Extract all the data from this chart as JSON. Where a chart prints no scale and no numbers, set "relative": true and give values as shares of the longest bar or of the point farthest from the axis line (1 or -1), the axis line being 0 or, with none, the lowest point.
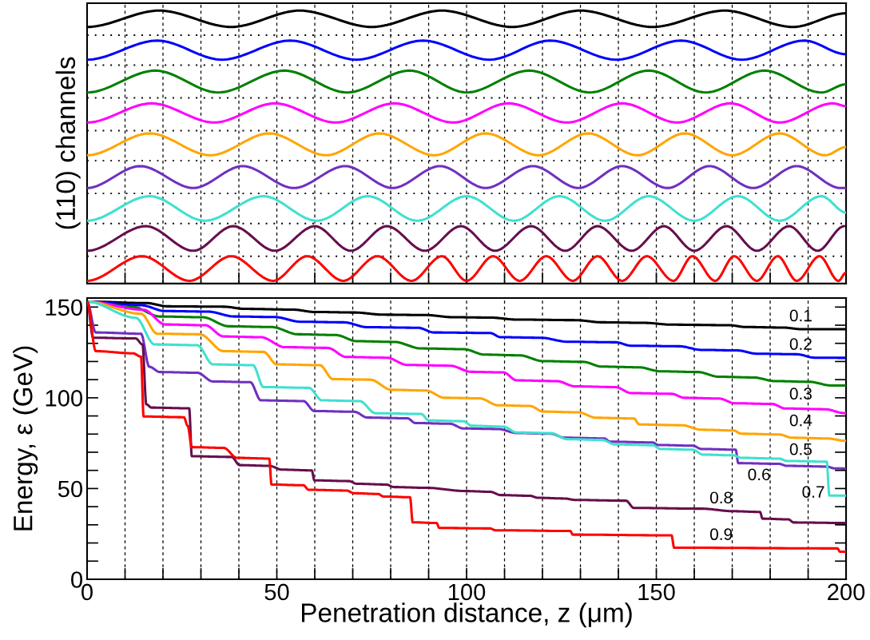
{
  "chart_data": [
    {
      "type": "line",
      "relative": true,
      "ylabel": "(110) channels",
      "xlim": [
        0,
        200
      ],
      "xticks": [
        {
          "value": 0,
          "label": null
        },
        {
          "value": 10,
          "label": null
        },
        {
          "value": 20,
          "label": null
        },
        {
          "value": 30,
          "label": null
        },
        {
          "value": 40,
          "label": null
        },
        {
          "value": 50,
          "label": null
        },
        {
          "value": 60,
          "label": null
        },
        {
          "value": 70,
          "label": null
        },
        {
          "value": 80,
          "label": null
        },
        {
          "value": 90,
          "label": null
        },
        {
          "value": 100,
          "label": null
        },
        {
          "value": 110,
          "label": null
        },
        {
          "value": 120,
          "label": null
        },
        {
          "value": 130,
          "label": null
        },
        {
          "value": 140,
          "label": null
        },
        {
          "value": 150,
          "label": null
        },
        {
          "value": 160,
          "label": null
        },
        {
          "value": 170,
          "label": null
        },
        {
          "value": 180,
          "label": null
        },
        {
          "value": 190,
          "label": null
        },
        {
          "value": 200,
          "label": null
        }
      ],
      "tick_labels": false,
      "grid": "x",
      "line_style": "solid",
      "marker": "none",
      "ref_lines": [
        {
          "axis": "y",
          "value": 0.91,
          "color": "#000000",
          "line_style": "dotted"
        },
        {
          "axis": "y",
          "value": 0.8,
          "color": "#000000",
          "line_style": "dotted"
        },
        {
          "axis": "y",
          "value": 0.68,
          "color": "#000000",
          "line_style": "dotted"
        },
        {
          "axis": "y",
          "value": 0.56,
          "color": "#000000",
          "line_style": "dotted"
        },
        {
          "axis": "y",
          "value": 0.45,
          "color": "#000000",
          "line_style": "dotted"
        },
        {
          "axis": "y",
          "value": 0.33,
          "color": "#000000",
          "line_style": "dotted"
        },
        {
          "axis": "y",
          "value": 0.22,
          "color": "#000000",
          "line_style": "dotted"
        },
        {
          "axis": "y",
          "value": 0.1,
          "color": "#000000",
          "line_style": "dotted"
        }
      ],
      "series": [
        {
          "color": "#000000",
          "x": [
            0,
            19,
            38,
            56,
            75,
            93.5,
            112,
            130,
            149,
            168,
            186,
            200
          ],
          "values": [
            0.94,
            1.0,
            0.94,
            1.0,
            0.94,
            1.0,
            0.94,
            1.0,
            0.94,
            1.0,
            0.94,
            0.99
          ]
        },
        {
          "color": "#0000ff",
          "x": [
            0,
            18.5,
            35.5,
            53.5,
            71,
            88.5,
            106,
            122,
            139.5,
            156.5,
            172.5,
            189,
            200
          ],
          "values": [
            0.82,
            0.89,
            0.82,
            0.89,
            0.82,
            0.89,
            0.82,
            0.89,
            0.82,
            0.89,
            0.82,
            0.89,
            0.84
          ]
        },
        {
          "color": "#008000",
          "x": [
            0,
            18,
            34.5,
            52,
            68.5,
            85,
            100,
            116.5,
            132.5,
            148,
            163,
            178.5,
            193.5,
            200
          ],
          "values": [
            0.7,
            0.78,
            0.7,
            0.78,
            0.7,
            0.78,
            0.7,
            0.78,
            0.7,
            0.78,
            0.7,
            0.78,
            0.7,
            0.73
          ]
        },
        {
          "color": "#ff00ff",
          "x": [
            0,
            17,
            33.5,
            49.5,
            65.5,
            81,
            96.5,
            111,
            126.5,
            141,
            155.5,
            169.5,
            182.5,
            196.5,
            200
          ],
          "values": [
            0.59,
            0.66,
            0.59,
            0.66,
            0.59,
            0.66,
            0.59,
            0.66,
            0.59,
            0.66,
            0.59,
            0.66,
            0.59,
            0.66,
            0.65
          ]
        },
        {
          "color": "#ffa500",
          "x": [
            0,
            16.5,
            32.5,
            48,
            63,
            77,
            91.5,
            105,
            119,
            132,
            145,
            157.5,
            170,
            182.5,
            194.5,
            200
          ],
          "values": [
            0.47,
            0.55,
            0.47,
            0.55,
            0.47,
            0.55,
            0.47,
            0.55,
            0.47,
            0.55,
            0.47,
            0.55,
            0.47,
            0.55,
            0.47,
            0.5
          ]
        },
        {
          "color": "#7030c0",
          "x": [
            0,
            14,
            28,
            41,
            54.5,
            68,
            80.5,
            93,
            105,
            117.5,
            129.5,
            141,
            153,
            164,
            175.5,
            187,
            198.5,
            200
          ],
          "values": [
            0.35,
            0.43,
            0.35,
            0.43,
            0.35,
            0.43,
            0.35,
            0.43,
            0.35,
            0.43,
            0.35,
            0.43,
            0.35,
            0.43,
            0.35,
            0.43,
            0.35,
            0.35
          ]
        },
        {
          "color": "#40e0d0",
          "x": [
            0,
            16.5,
            31,
            46.5,
            60.5,
            74,
            87,
            100,
            112.5,
            124.5,
            136.5,
            148,
            160,
            171.5,
            182.5,
            193.5,
            200
          ],
          "values": [
            0.23,
            0.32,
            0.23,
            0.32,
            0.23,
            0.32,
            0.23,
            0.32,
            0.23,
            0.32,
            0.23,
            0.32,
            0.23,
            0.32,
            0.23,
            0.32,
            0.26
          ]
        },
        {
          "color": "#660e4d",
          "x": [
            0,
            15.5,
            28,
            38.5,
            49.5,
            60,
            69.5,
            79,
            89,
            98.5,
            107.5,
            117,
            126,
            134.5,
            143.5,
            152,
            160,
            168.5,
            176.5,
            185,
            192.5,
            199.5
          ],
          "values": [
            0.12,
            0.21,
            0.12,
            0.21,
            0.12,
            0.21,
            0.12,
            0.21,
            0.12,
            0.21,
            0.12,
            0.21,
            0.12,
            0.21,
            0.12,
            0.21,
            0.12,
            0.21,
            0.12,
            0.21,
            0.12,
            0.21
          ]
        },
        {
          "color": "#ff0000",
          "x": [
            0,
            14.5,
            27,
            38,
            49,
            58,
            67.5,
            76.5,
            85.5,
            93.5,
            100,
            107,
            114,
            121,
            128,
            134.5,
            141,
            147.5,
            154.5,
            159.5,
            165.5,
            170.5,
            176.5,
            182,
            187,
            193,
            198,
            200
          ],
          "values": [
            0.01,
            0.1,
            0.01,
            0.1,
            0.01,
            0.1,
            0.01,
            0.1,
            0.01,
            0.1,
            0.01,
            0.1,
            0.01,
            0.1,
            0.01,
            0.1,
            0.01,
            0.1,
            0.01,
            0.1,
            0.01,
            0.1,
            0.01,
            0.1,
            0.01,
            0.1,
            0.01,
            0.04
          ]
        }
      ]
    },
    {
      "type": "line",
      "xlabel": "Penetration distance, z (μm)",
      "ylabel": "Energy, ε (GeV)",
      "xlim": [
        0,
        200
      ],
      "ylim": [
        0,
        155
      ],
      "xticks": [
        0,
        {
          "value": 10,
          "label": null
        },
        {
          "value": 20,
          "label": null
        },
        {
          "value": 30,
          "label": null
        },
        {
          "value": 40,
          "label": null
        },
        50,
        {
          "value": 60,
          "label": null
        },
        {
          "value": 70,
          "label": null
        },
        {
          "value": 80,
          "label": null
        },
        {
          "value": 90,
          "label": null
        },
        100,
        {
          "value": 110,
          "label": null
        },
        {
          "value": 120,
          "label": null
        },
        {
          "value": 130,
          "label": null
        },
        {
          "value": 140,
          "label": null
        },
        150,
        {
          "value": 160,
          "label": null
        },
        {
          "value": 170,
          "label": null
        },
        {
          "value": 180,
          "label": null
        },
        {
          "value": 190,
          "label": null
        },
        200
      ],
      "yticks": [
        0,
        {
          "value": 10,
          "label": null
        },
        {
          "value": 20,
          "label": null
        },
        {
          "value": 30,
          "label": null
        },
        {
          "value": 40,
          "label": null
        },
        50,
        {
          "value": 60,
          "label": null
        },
        {
          "value": 70,
          "label": null
        },
        {
          "value": 80,
          "label": null
        },
        {
          "value": 90,
          "label": null
        },
        100,
        {
          "value": 110,
          "label": null
        },
        {
          "value": 120,
          "label": null
        },
        {
          "value": 130,
          "label": null
        },
        {
          "value": 140,
          "label": null
        },
        150
      ],
      "grid": "x",
      "line_style": "solid",
      "marker": "none",
      "annotations": [
        {
          "text": "0.1",
          "x": 192,
          "y": 137.8
        },
        {
          "text": "0.2",
          "x": 192,
          "y": 122.1
        },
        {
          "text": "0.3",
          "x": 192,
          "y": 108.2
        },
        {
          "text": "0.4",
          "x": 192,
          "y": 93.5
        },
        {
          "text": "0.5",
          "x": 192,
          "y": 77.6
        },
        {
          "text": "0.6",
          "x": 181,
          "y": 63.7
        },
        {
          "text": "0.7",
          "x": 195.3,
          "y": 54.1
        },
        {
          "text": "0.8",
          "x": 171,
          "y": 37.5
        },
        {
          "text": "0.9",
          "x": 171,
          "y": 17.3
        }
      ],
      "series": [
        {
          "color": "#000000",
          "x": [
            0,
            15.6,
            21.3,
            36,
            41.6,
            54.2,
            59.9,
            70.4,
            78.1,
            89.3,
            96.4,
            106.2,
            113.2,
            128.7,
            135.6,
            146.9,
            154,
            169.3,
            173.5,
            183.4,
            188.3,
            200
          ],
          "values": [
            153,
            152.2,
            150.4,
            150.2,
            149,
            148.6,
            147.3,
            147,
            145.8,
            145.6,
            144.4,
            144.2,
            143.1,
            142.8,
            141.6,
            141.3,
            140.3,
            140,
            139,
            138.7,
            137.8,
            137.8
          ]
        },
        {
          "color": "#0000ff",
          "x": [
            0,
            14.2,
            20.6,
            31.8,
            38.8,
            49.3,
            56.4,
            67.6,
            73.9,
            87.2,
            91.4,
            106.2,
            109,
            119.5,
            126.5,
            139.2,
            143.4,
            156,
            161.9,
            171.4,
            176.4,
            186.9,
            191.8,
            200
          ],
          "values": [
            153,
            151,
            147.8,
            147.5,
            144.8,
            144.5,
            141.9,
            141.6,
            138.9,
            138.6,
            136,
            135.7,
            133.4,
            133.1,
            130.9,
            130.6,
            128.7,
            128.4,
            126.4,
            126.1,
            124.3,
            124,
            122.1,
            122
          ]
        },
        {
          "color": "#008000",
          "x": [
            0,
            12.1,
            19.2,
            30.4,
            37.4,
            48.6,
            55.6,
            65.5,
            71.1,
            80.9,
            88,
            99.2,
            104.8,
            113.9,
            120.2,
            130.7,
            135.6,
            145.4,
            151,
            160.9,
            166.5,
            175.6,
            181.3,
            190.4,
            196,
            200
          ],
          "values": [
            153,
            150,
            144.8,
            144.4,
            139.4,
            139,
            135,
            134.6,
            131.2,
            130.8,
            127.2,
            126.8,
            123.8,
            123.4,
            120.2,
            119.8,
            117.2,
            116.8,
            114.6,
            114.2,
            111.6,
            111.2,
            109.2,
            108.8,
            106.8,
            106.8
          ]
        },
        {
          "color": "#ff00ff",
          "x": [
            0,
            14.9,
            20.6,
            31.1,
            36,
            45.8,
            52.1,
            63.4,
            68.3,
            78.9,
            84.4,
            95.6,
            101.3,
            109.7,
            113.2,
            123.7,
            128.7,
            139.2,
            143.4,
            154,
            157.4,
            166.5,
            170.7,
            180.5,
            184,
            194.5,
            199.4,
            200
          ],
          "values": [
            153,
            148.5,
            140.4,
            140,
            133.8,
            133.4,
            127.9,
            127.5,
            122.5,
            122.1,
            118.1,
            117.7,
            114.3,
            114,
            109.6,
            109.2,
            106.3,
            105.9,
            102.6,
            102.2,
            100,
            99.6,
            97,
            96.6,
            94.1,
            93.7,
            91.6,
            91.6
          ]
        },
        {
          "color": "#ffa500",
          "x": [
            0,
            14.2,
            18.5,
            29.7,
            36,
            46.5,
            50,
            61.3,
            64.8,
            74.6,
            80.2,
            89.3,
            94.2,
            103.4,
            108.3,
            116.7,
            120.2,
            129.4,
            134.2,
            144.1,
            145.5,
            156.7,
            161.9,
            170.3,
            172.4,
            182.3,
            185.8,
            194.9,
            199.9
          ],
          "values": [
            153,
            146.3,
            135.3,
            135,
            125.7,
            125.3,
            118.4,
            118,
            110.3,
            110,
            104.4,
            104,
            100,
            99.7,
            95.9,
            95.5,
            92.4,
            92,
            89,
            88.6,
            85.3,
            84.9,
            82.4,
            82,
            80.2,
            79.8,
            78,
            77.6,
            76.3
          ]
        },
        {
          "color": "#7030c0",
          "x": [
            0,
            2.3,
            14.2,
            16.4,
            19.2,
            29,
            33.2,
            43,
            45.8,
            57,
            59.9,
            70.4,
            73.9,
            84.4,
            86.5,
            95.6,
            99.2,
            108.3,
            113.2,
            122.3,
            125.8,
            136.3,
            137.8,
            149,
            150.5,
            159.6,
            161.9,
            170.9,
            171.6,
            182.3,
            184.4,
            194.9,
            197,
            200
          ],
          "values": [
            153,
            136,
            135.3,
            117.1,
            114.2,
            113.8,
            109,
            108.6,
            98.6,
            98.2,
            92.7,
            92.3,
            89.1,
            88.7,
            86.1,
            85.7,
            83.1,
            82.8,
            80.6,
            80.2,
            78,
            77.6,
            75.8,
            75.4,
            74,
            73.6,
            71.8,
            71.4,
            64,
            63.6,
            62.5,
            62.1,
            61.1,
            61
          ]
        },
        {
          "color": "#40e0d0",
          "x": [
            0,
            12.8,
            17.8,
            29,
            33.2,
            43.7,
            46.5,
            58.4,
            61.9,
            71.8,
            76,
            88,
            90.1,
            99.2,
            101.3,
            109.7,
            113.2,
            122.3,
            126.5,
            135.6,
            139.2,
            149,
            151.1,
            159.6,
            162.3,
            170.3,
            172.4,
            182.3,
            184.4,
            194.9,
            195.6,
            200
          ],
          "values": [
            153,
            144.1,
            129.4,
            129,
            118.4,
            118,
            105.9,
            105.5,
            98.6,
            98.2,
            91.5,
            91.1,
            87.5,
            87.1,
            84.6,
            84.1,
            80.9,
            80.5,
            77.2,
            76.8,
            74.3,
            73.9,
            71.8,
            71.4,
            68.7,
            68.3,
            66.9,
            66.5,
            65.2,
            64.8,
            46.1,
            46.1
          ]
        },
        {
          "color": "#660e4d",
          "x": [
            0,
            1.6,
            12.8,
            14.6,
            15.6,
            17,
            26.9,
            27.6,
            38.1,
            40.2,
            48,
            51.4,
            59.2,
            59.9,
            69,
            71.1,
            78.8,
            80.9,
            89.3,
            99.9,
            106.2,
            109,
            116.7,
            118.8,
            125.8,
            128.7,
            142,
            144.1,
            161.9,
            170.3,
            177.3,
            178,
            184.8,
            186.2,
            200
          ],
          "values": [
            153,
            133.1,
            132.7,
            129.4,
            96.4,
            94.6,
            94.2,
            67.8,
            67.4,
            62.9,
            62.5,
            60.4,
            60,
            54.5,
            54.1,
            52.6,
            52.2,
            50.8,
            50.4,
            48.6,
            48.2,
            46.4,
            46,
            44.9,
            44.5,
            43.7,
            43.3,
            39.3,
            38.9,
            37.5,
            37.1,
            33.4,
            33,
            31.3,
            31
          ]
        },
        {
          "color": "#ff0000",
          "x": [
            0,
            2.3,
            12.1,
            14.2,
            14.9,
            25.5,
            26.5,
            27.6,
            36,
            39.5,
            48,
            48.6,
            57,
            58.4,
            68.3,
            70.4,
            76.7,
            78.1,
            85.1,
            85.8,
            92.1,
            92.8,
            106.2,
            107.6,
            127.3,
            128,
            154,
            154.7,
            197.7,
            198.4,
            200
          ],
          "values": [
            153,
            125.7,
            124.5,
            122.7,
            89.7,
            89.3,
            84.6,
            72.8,
            72.4,
            66.9,
            66.5,
            52.2,
            51.8,
            49.3,
            48.9,
            47.4,
            47,
            45.6,
            45.2,
            31.4,
            31,
            28.3,
            28,
            27,
            26.6,
            24.6,
            24.2,
            17.4,
            17,
            15.2,
            15.2
          ]
        }
      ]
    }
  ]
}
